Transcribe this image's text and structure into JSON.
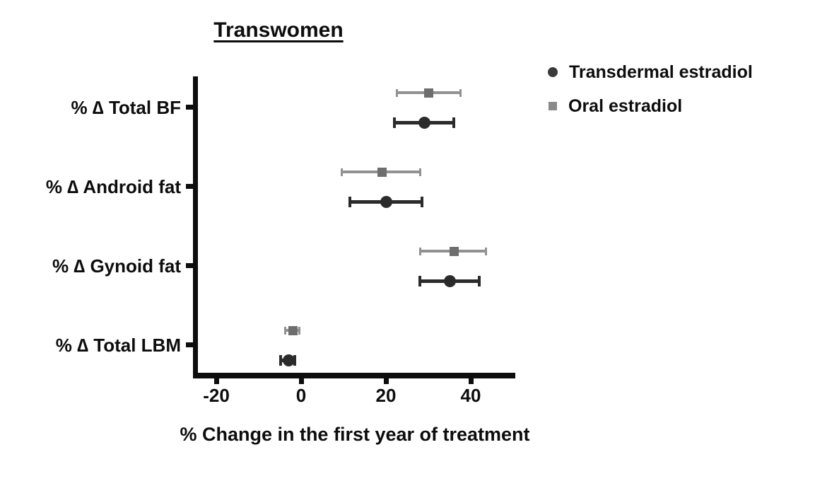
{
  "title": "Transwomen",
  "legend": {
    "items": [
      {
        "label": "Transdermal estradiol",
        "marker": "circle",
        "color": "#3a3a3a"
      },
      {
        "label": "Oral estradiol",
        "marker": "square",
        "color": "#8a8a8a"
      }
    ]
  },
  "chart_data": {
    "type": "scatter",
    "subtype": "forest-plot-point-range",
    "orientation": "horizontal",
    "title": "Transwomen",
    "xlabel": "% Change in the first year of treatment",
    "ylabel": "",
    "xlim": [
      -25,
      50
    ],
    "xticks": [
      -20,
      0,
      20,
      40
    ],
    "xtick_labels": [
      "-20",
      "0",
      "20",
      "40"
    ],
    "grid": false,
    "legend_position": "top-right",
    "categories": [
      "% ∆ Total BF",
      "% ∆ Android fat",
      "% ∆ Gynoid fat",
      "% ∆ Total LBM"
    ],
    "series": [
      {
        "name": "Transdermal estradiol",
        "marker": "circle",
        "color": "#2b2b2b",
        "marker_color": "#2b2b2b",
        "values": [
          {
            "category": "% ∆ Total BF",
            "mean": 29,
            "lo": 22,
            "hi": 36
          },
          {
            "category": "% ∆ Android fat",
            "mean": 20,
            "lo": 11.5,
            "hi": 28.5
          },
          {
            "category": "% ∆ Gynoid fat",
            "mean": 35,
            "lo": 28,
            "hi": 42
          },
          {
            "category": "% ∆ Total LBM",
            "mean": -3,
            "lo": -4.8,
            "hi": -1.5
          }
        ]
      },
      {
        "name": "Oral estradiol",
        "marker": "square",
        "color": "#919191",
        "marker_color": "#6e6e6e",
        "values": [
          {
            "category": "% ∆ Total BF",
            "mean": 30,
            "lo": 22.5,
            "hi": 37.5
          },
          {
            "category": "% ∆ Android fat",
            "mean": 19,
            "lo": 9.5,
            "hi": 28
          },
          {
            "category": "% ∆ Gynoid fat",
            "mean": 36,
            "lo": 28,
            "hi": 43.5
          },
          {
            "category": "% ∆ Total LBM",
            "mean": -2,
            "lo": -3.7,
            "hi": -0.5
          }
        ]
      }
    ]
  }
}
